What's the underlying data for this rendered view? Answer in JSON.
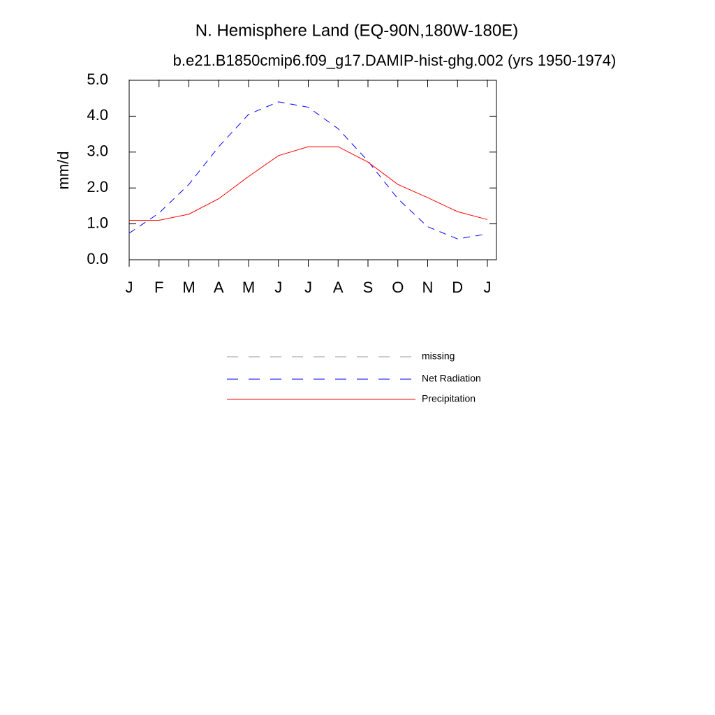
{
  "chart_data": {
    "type": "line",
    "title": "N. Hemisphere Land (EQ-90N,180W-180E)",
    "subtitle": "b.e21.B1850cmip6.f09_g17.DAMIP-hist-ghg.002 (yrs 1950-1974)",
    "y_label": "mm/d",
    "categories": [
      "J",
      "F",
      "M",
      "A",
      "M",
      "J",
      "J",
      "A",
      "S",
      "O",
      "N",
      "D",
      "J"
    ],
    "series": [
      {
        "name": "missing",
        "color": "#999999",
        "dash": "dashed",
        "values": [
          null,
          null,
          null,
          null,
          null,
          null,
          null,
          null,
          null,
          null,
          null,
          null,
          null
        ]
      },
      {
        "name": "Net Radiation",
        "color": "#0000ff",
        "dash": "dashed",
        "values": [
          0.74,
          1.3,
          2.1,
          3.15,
          4.05,
          4.4,
          4.25,
          3.65,
          2.75,
          1.7,
          0.92,
          0.58,
          0.72
        ]
      },
      {
        "name": "Precipitation",
        "color": "#ff0000",
        "dash": "solid",
        "values": [
          1.1,
          1.1,
          1.27,
          1.7,
          2.32,
          2.9,
          3.15,
          3.15,
          2.72,
          2.1,
          1.73,
          1.34,
          1.12
        ]
      }
    ],
    "ylim": [
      0,
      5
    ],
    "yticks": [
      {
        "value": 0,
        "label": "0.0"
      },
      {
        "value": 1,
        "label": "1.0"
      },
      {
        "value": 2,
        "label": "2.0"
      },
      {
        "value": 3,
        "label": "3.0"
      },
      {
        "value": 4,
        "label": "4.0"
      },
      {
        "value": 5,
        "label": "5.0"
      }
    ]
  }
}
